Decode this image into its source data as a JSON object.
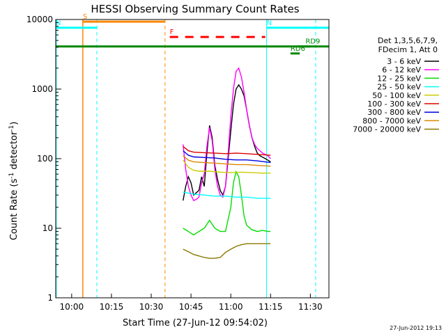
{
  "chart_data": {
    "type": "line",
    "title": "HESSI Observing Summary Count Rates",
    "xlabel": "Start Time (27-Jun-12 09:54:02)",
    "ylabel_main": "Count Rate (s",
    "ylabel_sup1": "-1",
    "ylabel_mid": " detector",
    "ylabel_sup2": "-1",
    "ylabel_end": ")",
    "footer_date": "27-Jun-2012 19:13",
    "x_range_minutes": [
      -6,
      97
    ],
    "x_ticks": [
      {
        "m": 0,
        "label": "10:00"
      },
      {
        "m": 15,
        "label": "10:15"
      },
      {
        "m": 30,
        "label": "10:30"
      },
      {
        "m": 45,
        "label": "10:45"
      },
      {
        "m": 60,
        "label": "11:00"
      },
      {
        "m": 75,
        "label": "11:15"
      },
      {
        "m": 90,
        "label": "11:30"
      }
    ],
    "y_range": [
      1,
      10000
    ],
    "y_scale": "log",
    "y_ticks": [
      {
        "v": 1,
        "label": "1"
      },
      {
        "v": 10,
        "label": "10"
      },
      {
        "v": 100,
        "label": "100"
      },
      {
        "v": 1000,
        "label": "1000"
      },
      {
        "v": 10000,
        "label": "10000"
      }
    ],
    "legend_header": [
      "Det 1,3,5,6,7,9,",
      "FDecim 1, Att 0"
    ],
    "series": [
      {
        "name": "3 - 6 keV",
        "color": "#000000",
        "points": [
          [
            42,
            25
          ],
          [
            43,
            40
          ],
          [
            44,
            55
          ],
          [
            45,
            45
          ],
          [
            46,
            30
          ],
          [
            48,
            35
          ],
          [
            49,
            55
          ],
          [
            50,
            40
          ],
          [
            51,
            120
          ],
          [
            52,
            300
          ],
          [
            53,
            200
          ],
          [
            54,
            80
          ],
          [
            55,
            50
          ],
          [
            56,
            35
          ],
          [
            57,
            30
          ],
          [
            58,
            40
          ],
          [
            59,
            100
          ],
          [
            60,
            250
          ],
          [
            61,
            600
          ],
          [
            62,
            1000
          ],
          [
            63,
            1150
          ],
          [
            64,
            1000
          ],
          [
            65,
            800
          ],
          [
            66,
            500
          ],
          [
            67,
            300
          ],
          [
            68,
            200
          ],
          [
            69,
            150
          ],
          [
            70,
            120
          ],
          [
            71,
            110
          ],
          [
            72,
            105
          ],
          [
            73,
            100
          ],
          [
            74,
            95
          ],
          [
            75,
            90
          ]
        ]
      },
      {
        "name": "6 - 12 keV",
        "color": "#ff00ff",
        "points": [
          [
            42,
            160
          ],
          [
            43,
            70
          ],
          [
            44,
            40
          ],
          [
            45,
            30
          ],
          [
            46,
            25
          ],
          [
            47,
            26
          ],
          [
            48,
            28
          ],
          [
            49,
            45
          ],
          [
            50,
            60
          ],
          [
            51,
            150
          ],
          [
            52,
            280
          ],
          [
            53,
            180
          ],
          [
            54,
            70
          ],
          [
            55,
            40
          ],
          [
            56,
            30
          ],
          [
            57,
            28
          ],
          [
            58,
            40
          ],
          [
            59,
            120
          ],
          [
            60,
            400
          ],
          [
            61,
            1000
          ],
          [
            62,
            1800
          ],
          [
            63,
            2000
          ],
          [
            64,
            1500
          ],
          [
            65,
            900
          ],
          [
            66,
            500
          ],
          [
            67,
            300
          ],
          [
            68,
            200
          ],
          [
            69,
            160
          ],
          [
            70,
            140
          ],
          [
            71,
            130
          ],
          [
            72,
            120
          ],
          [
            73,
            115
          ],
          [
            74,
            110
          ],
          [
            75,
            100
          ]
        ]
      },
      {
        "name": "12 - 25 keV",
        "color": "#00dd00",
        "points": [
          [
            42,
            10
          ],
          [
            44,
            9
          ],
          [
            46,
            8
          ],
          [
            48,
            9
          ],
          [
            50,
            10
          ],
          [
            52,
            13
          ],
          [
            54,
            10
          ],
          [
            56,
            9
          ],
          [
            58,
            9
          ],
          [
            60,
            20
          ],
          [
            61,
            45
          ],
          [
            62,
            65
          ],
          [
            63,
            55
          ],
          [
            64,
            30
          ],
          [
            65,
            15
          ],
          [
            66,
            11
          ],
          [
            68,
            9.5
          ],
          [
            70,
            9
          ],
          [
            72,
            9.3
          ],
          [
            74,
            9
          ],
          [
            75,
            9
          ]
        ]
      },
      {
        "name": "25 - 50 keV",
        "color": "#00ffff",
        "points": [
          [
            42,
            33
          ],
          [
            46,
            31
          ],
          [
            50,
            30
          ],
          [
            54,
            29
          ],
          [
            58,
            29
          ],
          [
            62,
            28
          ],
          [
            66,
            28
          ],
          [
            70,
            27
          ],
          [
            75,
            27
          ]
        ]
      },
      {
        "name": "50 - 100 keV",
        "color": "#cccc00",
        "points": [
          [
            42,
            95
          ],
          [
            44,
            75
          ],
          [
            46,
            68
          ],
          [
            48,
            66
          ],
          [
            52,
            66
          ],
          [
            56,
            64
          ],
          [
            60,
            63
          ],
          [
            64,
            64
          ],
          [
            68,
            63
          ],
          [
            72,
            62
          ],
          [
            75,
            62
          ]
        ]
      },
      {
        "name": "100 - 300 keV",
        "color": "#dd0000",
        "points": [
          [
            42,
            150
          ],
          [
            44,
            130
          ],
          [
            46,
            124
          ],
          [
            50,
            122
          ],
          [
            54,
            120
          ],
          [
            58,
            118
          ],
          [
            62,
            120
          ],
          [
            66,
            118
          ],
          [
            70,
            115
          ],
          [
            75,
            112
          ]
        ]
      },
      {
        "name": "300 - 800 keV",
        "color": "#0000dd",
        "points": [
          [
            42,
            130
          ],
          [
            44,
            112
          ],
          [
            46,
            106
          ],
          [
            50,
            104
          ],
          [
            54,
            102
          ],
          [
            58,
            98
          ],
          [
            62,
            96
          ],
          [
            66,
            96
          ],
          [
            70,
            93
          ],
          [
            75,
            88
          ]
        ]
      },
      {
        "name": "800 - 7000 keV",
        "color": "#dd8800",
        "points": [
          [
            42,
            110
          ],
          [
            44,
            95
          ],
          [
            46,
            90
          ],
          [
            50,
            88
          ],
          [
            54,
            86
          ],
          [
            58,
            84
          ],
          [
            62,
            82
          ],
          [
            66,
            82
          ],
          [
            70,
            80
          ],
          [
            75,
            78
          ]
        ]
      },
      {
        "name": "7000 - 20000 keV",
        "color": "#887700",
        "points": [
          [
            42,
            5
          ],
          [
            44,
            4.6
          ],
          [
            46,
            4.2
          ],
          [
            48,
            4
          ],
          [
            50,
            3.8
          ],
          [
            52,
            3.7
          ],
          [
            54,
            3.7
          ],
          [
            56,
            3.8
          ],
          [
            58,
            4.5
          ],
          [
            60,
            5
          ],
          [
            62,
            5.5
          ],
          [
            64,
            5.8
          ],
          [
            66,
            6
          ],
          [
            68,
            6
          ],
          [
            70,
            6
          ],
          [
            72,
            6
          ],
          [
            75,
            6
          ]
        ]
      }
    ],
    "flags": [
      {
        "label": "S",
        "color": "#ff8800",
        "from": 4.2,
        "to": 35.2,
        "y": 9300
      },
      {
        "label": "N",
        "color": "#00ffff",
        "from": -6,
        "to": 9.5,
        "y": 7600
      },
      {
        "label": "N",
        "color": "#00ffff",
        "from": 73.5,
        "to": 97,
        "y": 7600
      },
      {
        "label": "F",
        "color": "#ff0000",
        "from": 37,
        "to": 73,
        "y": 5600
      },
      {
        "label": "",
        "color": "#008800",
        "from": -6,
        "to": 97,
        "y": 4100
      },
      {
        "label": "RD9",
        "color": "#008800",
        "from": 85,
        "to": 90,
        "y": 4100
      },
      {
        "label": "RD6",
        "color": "#008800",
        "from": 82.5,
        "to": 86,
        "y": 3250
      }
    ]
  }
}
